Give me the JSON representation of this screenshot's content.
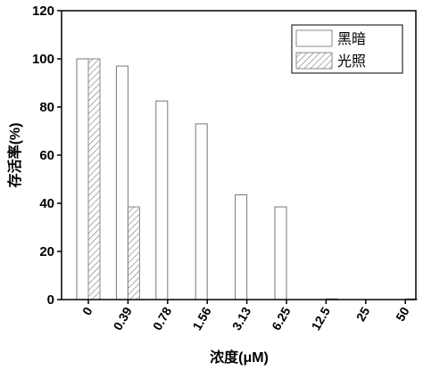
{
  "chart_data": {
    "type": "bar",
    "categories": [
      "0",
      "0.39",
      "0.78",
      "1.56",
      "3.13",
      "6.25",
      "12.5",
      "25",
      "50"
    ],
    "series": [
      {
        "name": "黑暗",
        "values": [
          100,
          97,
          82.5,
          73,
          43.5,
          38.5,
          0,
          0,
          0
        ],
        "pattern": "open"
      },
      {
        "name": "光照",
        "values": [
          100,
          38.5,
          0,
          0,
          0,
          0,
          0.3,
          0,
          0.3
        ],
        "pattern": "hatched"
      }
    ],
    "xlabel": "浓度(μM)",
    "ylabel": "存活率(%)",
    "ylim": [
      0,
      120
    ],
    "yticks": [
      0,
      20,
      40,
      60,
      80,
      100,
      120
    ],
    "legend_position": "top-right",
    "grid": false,
    "colors": {
      "bar_stroke": "#000000",
      "hatch": "#777777",
      "axis": "#000000"
    }
  }
}
